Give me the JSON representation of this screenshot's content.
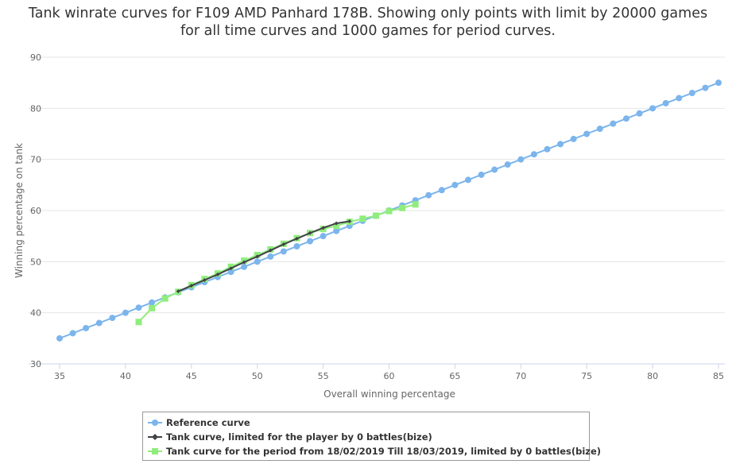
{
  "chart_data": {
    "type": "line",
    "title_lines": [
      "Tank winrate curves for F109 AMD Panhard 178B. Showing only points with limit by 20000 games",
      "for all time curves and 1000 games for period curves."
    ],
    "xlabel": "Overall winning percentage",
    "ylabel": "Winning percentage on tank",
    "xlim": [
      35,
      85
    ],
    "ylim": [
      30,
      90
    ],
    "x_ticks": [
      35,
      40,
      45,
      50,
      55,
      60,
      65,
      70,
      75,
      80,
      85
    ],
    "y_ticks": [
      30,
      40,
      50,
      60,
      70,
      80,
      90
    ],
    "grid": "horizontal",
    "legend_position": "bottom",
    "series": [
      {
        "name": "Reference curve",
        "color": "#7cb5ec",
        "marker": "circle",
        "x": [
          35,
          36,
          37,
          38,
          39,
          40,
          41,
          42,
          43,
          44,
          45,
          46,
          47,
          48,
          49,
          50,
          51,
          52,
          53,
          54,
          55,
          56,
          57,
          58,
          59,
          60,
          61,
          62,
          63,
          64,
          65,
          66,
          67,
          68,
          69,
          70,
          71,
          72,
          73,
          74,
          75,
          76,
          77,
          78,
          79,
          80,
          81,
          82,
          83,
          84,
          85
        ],
        "y": [
          35,
          36,
          37,
          38,
          39,
          40,
          41,
          42,
          43,
          44,
          45,
          46,
          47,
          48,
          49,
          50,
          51,
          52,
          53,
          54,
          55,
          56,
          57,
          58,
          59,
          60,
          61,
          62,
          63,
          64,
          65,
          66,
          67,
          68,
          69,
          70,
          71,
          72,
          73,
          74,
          75,
          76,
          77,
          78,
          79,
          80,
          81,
          82,
          83,
          84,
          85
        ]
      },
      {
        "name": "Tank curve, limited for the player by 0 battles(bize)",
        "color": "#434348",
        "marker": "diamond",
        "x": [
          44,
          45,
          46,
          47,
          48,
          49,
          50,
          51,
          52,
          53,
          54,
          55,
          56,
          57
        ],
        "y": [
          44.2,
          45.3,
          46.4,
          47.5,
          48.7,
          49.9,
          51.0,
          52.2,
          53.4,
          54.5,
          55.6,
          56.6,
          57.5,
          57.9
        ]
      },
      {
        "name": "Tank curve for the period from 18/02/2019 Till 18/03/2019, limited by 0 battles(bize)",
        "color": "#90ed7d",
        "marker": "square",
        "x": [
          41,
          42,
          43,
          44,
          45,
          46,
          47,
          48,
          49,
          50,
          51,
          52,
          53,
          54,
          55,
          56,
          57,
          58,
          59,
          60,
          61,
          62
        ],
        "y": [
          38.2,
          40.9,
          42.8,
          44.1,
          45.4,
          46.6,
          47.7,
          49.0,
          50.2,
          51.3,
          52.4,
          53.5,
          54.6,
          55.6,
          56.4,
          57.0,
          57.8,
          58.4,
          59.0,
          59.9,
          60.5,
          61.2
        ]
      }
    ]
  }
}
